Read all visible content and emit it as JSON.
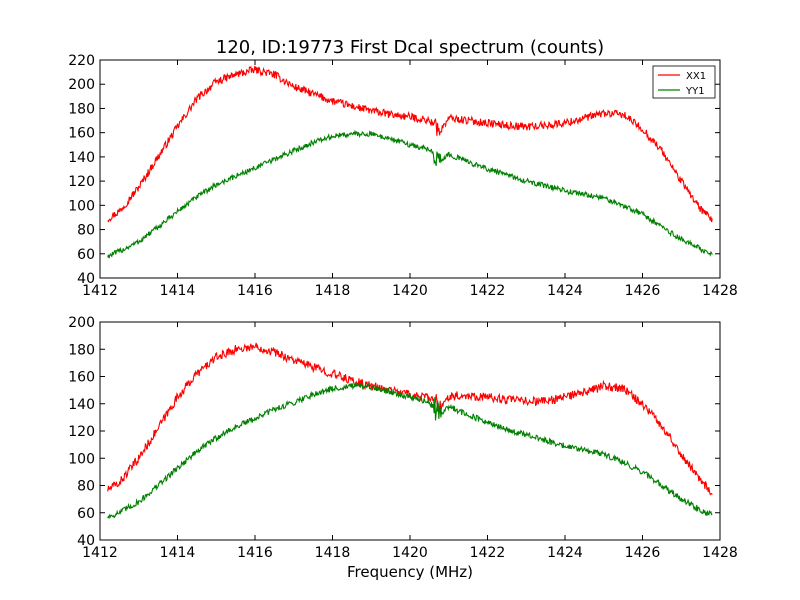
{
  "figure": {
    "title": "120, ID:19773 First Dcal spectrum (counts)",
    "xlabel": "Frequency (MHz)"
  },
  "chart_data": [
    {
      "type": "line",
      "title": "120, ID:19773 First Dcal spectrum (counts)",
      "xlabel": "",
      "ylabel": "",
      "xlim": [
        1412,
        1428
      ],
      "ylim": [
        40,
        220
      ],
      "xticks": [
        "1412",
        "1414",
        "1416",
        "1418",
        "1420",
        "1422",
        "1424",
        "1426",
        "1428"
      ],
      "yticks": [
        "40",
        "60",
        "80",
        "100",
        "120",
        "140",
        "160",
        "180",
        "200",
        "220"
      ],
      "grid": false,
      "legend": "top-right",
      "x": [
        1412.2,
        1412.5,
        1413.0,
        1413.5,
        1414.0,
        1414.5,
        1415.0,
        1415.5,
        1416.0,
        1416.5,
        1417.0,
        1417.5,
        1418.0,
        1418.5,
        1419.0,
        1419.5,
        1420.0,
        1420.5,
        1420.8,
        1421.0,
        1421.5,
        1422.0,
        1422.5,
        1423.0,
        1423.5,
        1424.0,
        1424.5,
        1425.0,
        1425.5,
        1426.0,
        1426.5,
        1427.0,
        1427.5,
        1427.8
      ],
      "series": [
        {
          "name": "XX1",
          "color": "#ff0000",
          "values": [
            89,
            95,
            115,
            140,
            165,
            188,
            202,
            208,
            212,
            208,
            198,
            192,
            186,
            182,
            178,
            175,
            173,
            170,
            162,
            172,
            170,
            168,
            166,
            165,
            166,
            168,
            172,
            176,
            175,
            163,
            145,
            120,
            97,
            87
          ]
        },
        {
          "name": "YY1",
          "color": "#008000",
          "values": [
            58,
            62,
            70,
            82,
            95,
            107,
            117,
            124,
            131,
            138,
            145,
            152,
            157,
            159,
            159,
            155,
            150,
            146,
            137,
            142,
            136,
            130,
            125,
            120,
            116,
            112,
            109,
            106,
            100,
            93,
            82,
            72,
            64,
            60
          ]
        }
      ]
    },
    {
      "type": "line",
      "title": "",
      "xlabel": "Frequency (MHz)",
      "ylabel": "",
      "xlim": [
        1412,
        1428
      ],
      "ylim": [
        40,
        200
      ],
      "xticks": [
        "1412",
        "1414",
        "1416",
        "1418",
        "1420",
        "1422",
        "1424",
        "1426",
        "1428"
      ],
      "yticks": [
        "40",
        "60",
        "80",
        "100",
        "120",
        "140",
        "160",
        "180",
        "200"
      ],
      "grid": false,
      "x": [
        1412.2,
        1412.5,
        1413.0,
        1413.5,
        1414.0,
        1414.5,
        1415.0,
        1415.5,
        1416.0,
        1416.5,
        1417.0,
        1417.5,
        1418.0,
        1418.5,
        1419.0,
        1419.5,
        1420.0,
        1420.5,
        1420.8,
        1421.0,
        1421.5,
        1422.0,
        1422.5,
        1423.0,
        1423.5,
        1424.0,
        1424.5,
        1425.0,
        1425.5,
        1426.0,
        1426.5,
        1427.0,
        1427.5,
        1427.8
      ],
      "series": [
        {
          "name": "XX1",
          "color": "#ff0000",
          "values": [
            77,
            82,
            100,
            122,
            145,
            162,
            174,
            180,
            182,
            178,
            172,
            167,
            162,
            157,
            153,
            150,
            147,
            144,
            136,
            146,
            146,
            145,
            143,
            142,
            142,
            145,
            148,
            153,
            151,
            140,
            124,
            103,
            84,
            75
          ]
        },
        {
          "name": "YY1",
          "color": "#008000",
          "values": [
            57,
            60,
            68,
            80,
            93,
            105,
            115,
            123,
            129,
            136,
            141,
            147,
            151,
            153,
            152,
            149,
            145,
            141,
            132,
            138,
            132,
            126,
            121,
            117,
            113,
            109,
            106,
            103,
            97,
            90,
            80,
            70,
            62,
            58
          ]
        }
      ]
    }
  ]
}
